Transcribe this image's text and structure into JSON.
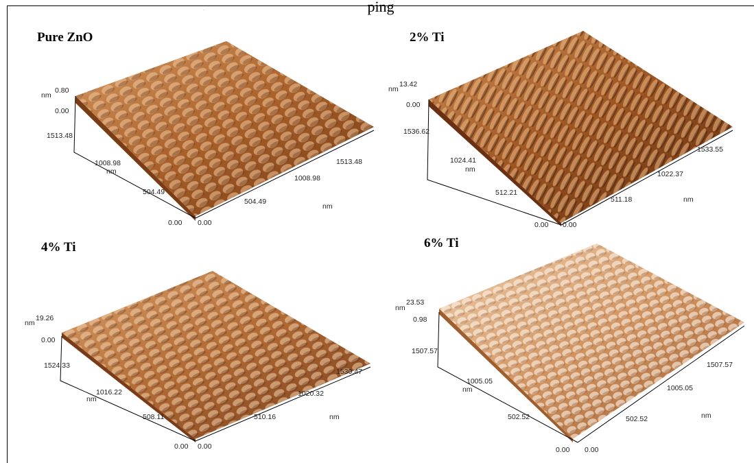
{
  "figure": {
    "caption_fragment": "ping",
    "panels": [
      {
        "title": "Pure ZnO",
        "z_unit": "nm",
        "z_max": "0.80",
        "z_min": "0.00",
        "y_ticks": [
          "1513.48",
          "1008.98",
          "504.49"
        ],
        "y_unit": "nm",
        "origin_y": "0.00",
        "origin_x": "0.00",
        "x_ticks": [
          "504.49",
          "1008.98",
          "1513.48"
        ],
        "x_unit": "nm",
        "surface_color": "#b5703a"
      },
      {
        "title": "2% Ti",
        "z_unit": "nm",
        "z_max": "13.42",
        "z_min": "0.00",
        "y_ticks": [
          "1536.62",
          "1024.41",
          "512.21"
        ],
        "y_unit": "nm",
        "origin_y": "0.00",
        "origin_x": "0.00",
        "x_ticks": [
          "511.18",
          "1022.37",
          "1533.55"
        ],
        "x_unit": "nm",
        "surface_color": "#a9612d"
      },
      {
        "title": "4% Ti",
        "z_unit": "nm",
        "z_max": "19.26",
        "z_min": "0.00",
        "y_ticks": [
          "1524.33",
          "1016.22",
          "508.11"
        ],
        "y_unit": "nm",
        "origin_y": "0.00",
        "origin_x": "0.00",
        "x_ticks": [
          "510.16",
          "1020.32",
          "1530.47"
        ],
        "x_unit": "nm",
        "surface_color": "#ba7a45"
      },
      {
        "title": "6% Ti",
        "z_unit": "nm",
        "z_max": "23.53",
        "z_min": "0.98",
        "y_ticks": [
          "1507.57",
          "1005.05",
          "502.52"
        ],
        "y_unit": "nm",
        "origin_y": "0.00",
        "origin_x": "0.00",
        "x_ticks": [
          "502.52",
          "1005.05",
          "1507.57"
        ],
        "x_unit": "nm",
        "surface_color": "#d9a77a"
      }
    ]
  }
}
